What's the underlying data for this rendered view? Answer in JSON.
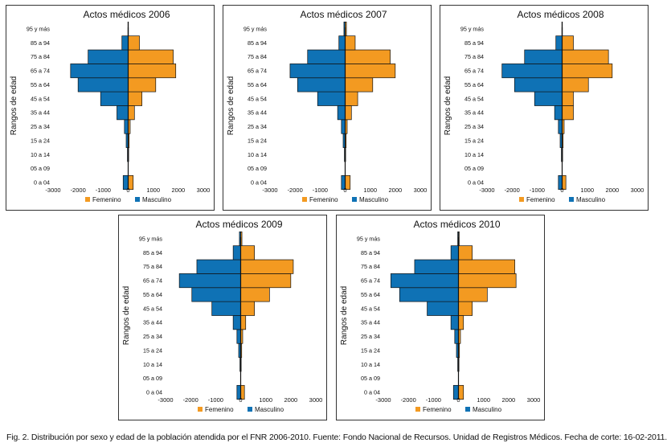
{
  "caption": "Fig. 2. Distribución por sexo y edad de la población atendida por el FNR 2006-2010. Fuente: Fondo Nacional de Recursos. Unidad de Registros Médicos. Fecha de corte: 16-02-2011.",
  "colors": {
    "femenino": "#f39a21",
    "masculino": "#0f72b5"
  },
  "chart_data": [
    {
      "type": "bar",
      "orientation": "horizontal-pyramid",
      "title": "Actos médicos 2006",
      "ylabel": "Rangos de edad",
      "xlabel": "",
      "xlim": [
        -3000,
        3000
      ],
      "xticks": [
        -3000,
        -2000,
        -1000,
        0,
        1000,
        2000,
        3000
      ],
      "categories": [
        "0 a 04",
        "05 a 09",
        "10 a 14",
        "15 a 24",
        "25 a 34",
        "35 a 44",
        "45 a 54",
        "55 a 64",
        "65 a 74",
        "75 a 84",
        "85 a 94",
        "95 y más"
      ],
      "series": [
        {
          "name": "Femenino",
          "values": [
            200,
            0,
            20,
            40,
            80,
            250,
            550,
            1100,
            1900,
            1800,
            450,
            10
          ]
        },
        {
          "name": "Masculino",
          "values": [
            -200,
            0,
            -30,
            -80,
            -150,
            -450,
            -1100,
            -2000,
            -2300,
            -1600,
            -250,
            -10
          ]
        }
      ],
      "legend": "bottom"
    },
    {
      "type": "bar",
      "orientation": "horizontal-pyramid",
      "title": "Actos médicos 2007",
      "ylabel": "Rangos de edad",
      "xlabel": "",
      "xlim": [
        -3000,
        3000
      ],
      "xticks": [
        -3000,
        -2000,
        -1000,
        0,
        1000,
        2000,
        3000
      ],
      "categories": [
        "0 a 04",
        "05 a 09",
        "10 a 14",
        "15 a 24",
        "25 a 34",
        "35 a 44",
        "45 a 54",
        "55 a 64",
        "65 a 74",
        "75 a 84",
        "85 a 94",
        "95 y más"
      ],
      "series": [
        {
          "name": "Femenino",
          "values": [
            200,
            0,
            20,
            40,
            80,
            250,
            500,
            1100,
            2000,
            1800,
            400,
            50
          ]
        },
        {
          "name": "Masculino",
          "values": [
            -150,
            0,
            -30,
            -80,
            -150,
            -300,
            -1100,
            -1900,
            -2200,
            -1500,
            -250,
            -50
          ]
        }
      ],
      "legend": "bottom"
    },
    {
      "type": "bar",
      "orientation": "horizontal-pyramid",
      "title": "Actos médicos 2008",
      "ylabel": "Rangos de edad",
      "xlabel": "",
      "xlim": [
        -3000,
        3000
      ],
      "xticks": [
        -3000,
        -2000,
        -1000,
        0,
        1000,
        2000,
        3000
      ],
      "categories": [
        "0 a 04",
        "05 a 09",
        "10 a 14",
        "15 a 24",
        "25 a 34",
        "35 a 44",
        "45 a 54",
        "55 a 64",
        "65 a 74",
        "75 a 84",
        "85 a 94",
        "95 y más"
      ],
      "series": [
        {
          "name": "Femenino",
          "values": [
            150,
            0,
            20,
            40,
            80,
            450,
            450,
            1050,
            2000,
            1850,
            450,
            10
          ]
        },
        {
          "name": "Masculino",
          "values": [
            -150,
            0,
            -30,
            -80,
            -150,
            -300,
            -1100,
            -1900,
            -2400,
            -1500,
            -250,
            -10
          ]
        }
      ],
      "legend": "bottom"
    },
    {
      "type": "bar",
      "orientation": "horizontal-pyramid",
      "title": "Actos médicos 2009",
      "ylabel": "Rangos de edad",
      "xlabel": "",
      "xlim": [
        -3000,
        3000
      ],
      "xticks": [
        -3000,
        -2000,
        -1000,
        0,
        1000,
        2000,
        3000
      ],
      "categories": [
        "0 a 04",
        "05 a 09",
        "10 a 14",
        "15 a 24",
        "25 a 34",
        "35 a 44",
        "45 a 54",
        "55 a 64",
        "65 a 74",
        "75 a 84",
        "85 a 94",
        "95 y más"
      ],
      "series": [
        {
          "name": "Femenino",
          "values": [
            150,
            0,
            20,
            40,
            80,
            200,
            550,
            1150,
            2000,
            2100,
            550,
            50
          ]
        },
        {
          "name": "Masculino",
          "values": [
            -150,
            0,
            -30,
            -80,
            -150,
            -300,
            -1150,
            -1950,
            -2450,
            -1750,
            -300,
            -50
          ]
        }
      ],
      "legend": "bottom"
    },
    {
      "type": "bar",
      "orientation": "horizontal-pyramid",
      "title": "Actos médicos 2010",
      "ylabel": "Rangos de edad",
      "xlabel": "",
      "xlim": [
        -3000,
        3000
      ],
      "xticks": [
        -3000,
        -2000,
        -1000,
        0,
        1000,
        2000,
        3000
      ],
      "categories": [
        "0 a 04",
        "05 a 09",
        "10 a 14",
        "15 a 24",
        "25 a 34",
        "35 a 44",
        "45 a 54",
        "55 a 64",
        "65 a 74",
        "75 a 84",
        "85 a 94",
        "95 y más"
      ],
      "series": [
        {
          "name": "Femenino",
          "values": [
            200,
            0,
            20,
            40,
            80,
            200,
            550,
            1150,
            2300,
            2250,
            550,
            30
          ]
        },
        {
          "name": "Masculino",
          "values": [
            -200,
            0,
            -30,
            -80,
            -150,
            -300,
            -1250,
            -2350,
            -2700,
            -1750,
            -300,
            -30
          ]
        }
      ],
      "legend": "bottom"
    }
  ]
}
